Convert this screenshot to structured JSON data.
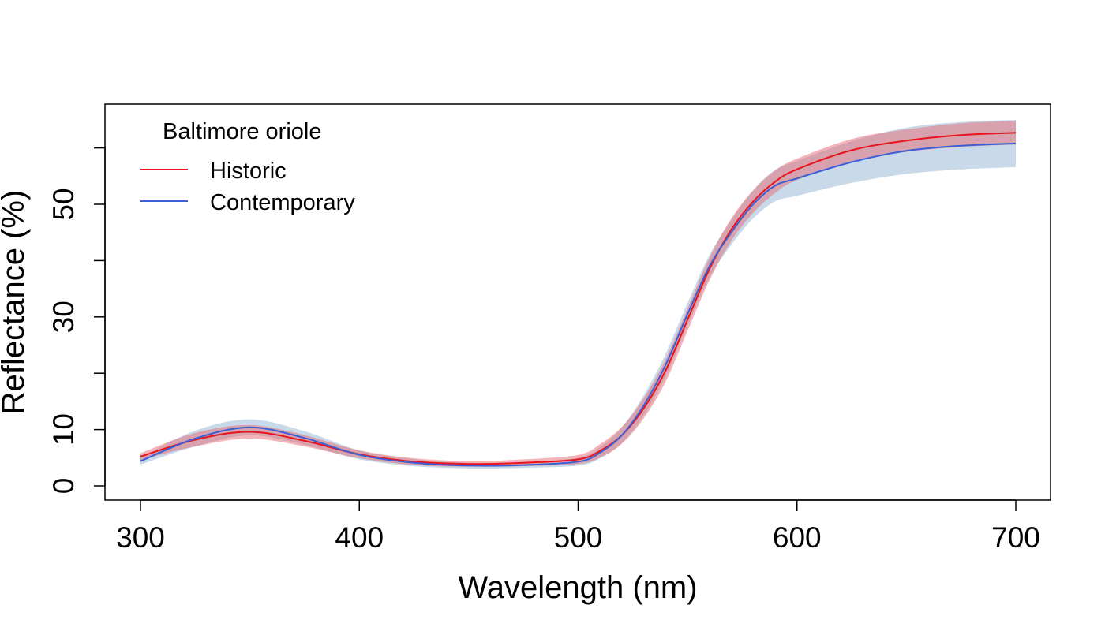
{
  "chart_data": {
    "type": "line",
    "title": "",
    "xlabel": "Wavelength (nm)",
    "ylabel": "Reflectance (%)",
    "xlim": [
      300,
      700
    ],
    "ylim": [
      0,
      62
    ],
    "x_ticks": [
      300,
      400,
      500,
      600,
      700
    ],
    "y_ticks": [
      0,
      10,
      20,
      30,
      40,
      50,
      60
    ],
    "y_tick_labels": [
      "0",
      "10",
      "",
      "30",
      "",
      "50",
      ""
    ],
    "grid": false,
    "legend": {
      "title": "Baltimore oriole",
      "position": "top-left",
      "entries": [
        "Historic",
        "Contemporary"
      ]
    },
    "series": [
      {
        "name": "Historic",
        "color": "#e8141c",
        "band_color": "#e56a72",
        "x": [
          300,
          325,
          350,
          375,
          400,
          425,
          450,
          475,
          500,
          510,
          520,
          530,
          540,
          550,
          560,
          570,
          580,
          590,
          600,
          625,
          650,
          675,
          700
        ],
        "y": [
          5.2,
          8.2,
          9.6,
          8.0,
          5.6,
          4.3,
          3.9,
          4.1,
          4.7,
          6.2,
          9.0,
          13.8,
          20.5,
          29.5,
          38.5,
          45.5,
          50.5,
          54.0,
          56.2,
          59.6,
          61.3,
          62.3,
          62.7
        ],
        "lower": [
          4.6,
          7.0,
          8.4,
          7.0,
          4.9,
          3.7,
          3.4,
          3.5,
          3.9,
          5.0,
          7.5,
          12.0,
          18.5,
          27.5,
          36.5,
          43.5,
          48.5,
          52.0,
          54.3,
          57.6,
          59.3,
          60.2,
          60.6
        ],
        "upper": [
          5.8,
          9.4,
          10.8,
          9.0,
          6.3,
          4.9,
          4.4,
          4.7,
          5.5,
          7.4,
          10.5,
          15.6,
          22.5,
          31.5,
          40.5,
          47.5,
          52.5,
          56.0,
          58.1,
          61.6,
          63.3,
          64.4,
          64.8
        ]
      },
      {
        "name": "Contemporary",
        "color": "#3a5fd6",
        "band_color": "#91b4d4",
        "x": [
          300,
          325,
          350,
          375,
          400,
          425,
          450,
          475,
          500,
          510,
          520,
          530,
          540,
          550,
          560,
          570,
          580,
          590,
          600,
          625,
          650,
          675,
          700
        ],
        "y": [
          4.4,
          8.4,
          10.4,
          8.5,
          5.5,
          4.1,
          3.6,
          3.7,
          4.3,
          5.9,
          9.0,
          14.3,
          21.5,
          30.5,
          39.0,
          45.0,
          50.0,
          53.3,
          54.6,
          57.5,
          59.5,
          60.4,
          60.8
        ],
        "lower": [
          3.8,
          7.0,
          9.0,
          7.3,
          4.7,
          3.5,
          3.1,
          3.2,
          3.6,
          4.9,
          7.6,
          12.5,
          19.5,
          28.5,
          37.0,
          42.8,
          47.5,
          50.5,
          51.5,
          53.8,
          55.4,
          56.2,
          56.6
        ],
        "upper": [
          5.0,
          9.8,
          11.8,
          9.7,
          6.3,
          4.7,
          4.1,
          4.2,
          5.0,
          6.9,
          10.4,
          16.1,
          23.5,
          32.5,
          41.0,
          47.2,
          52.5,
          56.1,
          57.7,
          61.2,
          63.6,
          64.6,
          65.0
        ]
      }
    ]
  }
}
